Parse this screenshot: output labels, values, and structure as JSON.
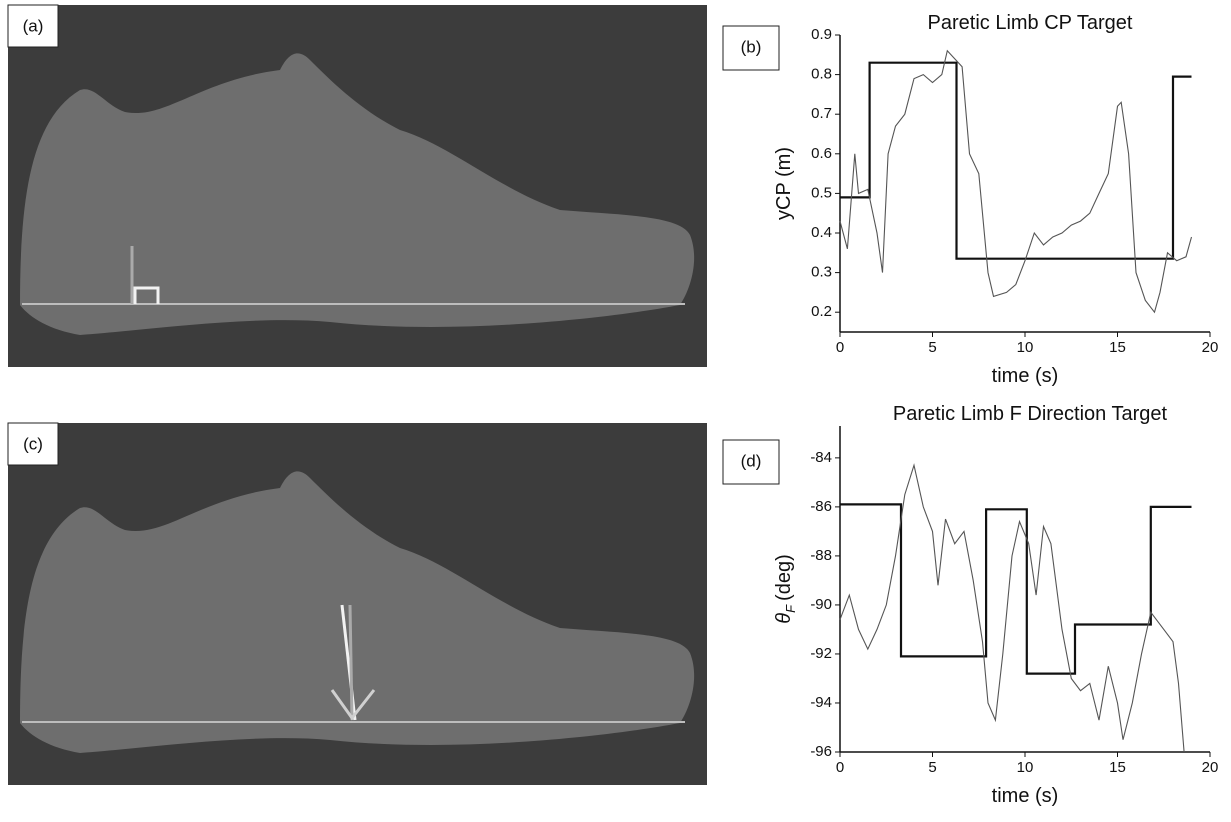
{
  "panel_labels": [
    "(a)",
    "(b)",
    "(c)",
    "(d)"
  ],
  "chart_data": [
    {
      "type": "line",
      "title": "Paretic Limb CP Target",
      "xlabel": "time (s)",
      "ylabel": "yCP (m)",
      "xlim": [
        0,
        20
      ],
      "xticks": [
        0,
        5,
        10,
        15,
        20
      ],
      "ylim": [
        0.15,
        0.9
      ],
      "yticks": [
        0.2,
        0.3,
        0.4,
        0.5,
        0.6,
        0.7,
        0.8,
        0.9
      ],
      "series": [
        {
          "color": "#111111",
          "x": [
            0,
            1.6,
            1.6,
            6.3,
            6.3,
            18.0,
            18.0,
            19.0
          ],
          "values": [
            0.49,
            0.49,
            0.83,
            0.83,
            0.335,
            0.335,
            0.795,
            0.795
          ]
        },
        {
          "color": "#555555",
          "x": [
            0,
            0.4,
            0.8,
            1.0,
            1.5,
            2,
            2.3,
            2.6,
            3,
            3.5,
            4,
            4.5,
            5,
            5.5,
            5.8,
            6.2,
            6.6,
            7,
            7.5,
            8,
            8.3,
            9,
            9.5,
            10,
            10.5,
            11,
            11.5,
            12,
            12.5,
            13,
            13.5,
            14,
            14.5,
            15,
            15.2,
            15.6,
            16,
            16.5,
            17,
            17.3,
            17.7,
            18.2,
            18.7,
            19
          ],
          "values": [
            0.43,
            0.36,
            0.6,
            0.5,
            0.51,
            0.4,
            0.3,
            0.6,
            0.67,
            0.7,
            0.79,
            0.8,
            0.78,
            0.8,
            0.86,
            0.84,
            0.82,
            0.6,
            0.55,
            0.3,
            0.24,
            0.25,
            0.27,
            0.33,
            0.4,
            0.37,
            0.39,
            0.4,
            0.42,
            0.43,
            0.45,
            0.5,
            0.55,
            0.72,
            0.73,
            0.6,
            0.3,
            0.23,
            0.2,
            0.25,
            0.35,
            0.33,
            0.34,
            0.39
          ]
        }
      ]
    },
    {
      "type": "line",
      "title": "Paretic Limb F Direction Target",
      "xlabel": "time (s)",
      "ylabel": {
        "symbol": "θ",
        "subscript": "F",
        "unit": "(deg)"
      },
      "xlim": [
        0,
        20
      ],
      "xticks": [
        0,
        5,
        10,
        15,
        20
      ],
      "ylim": [
        -96,
        -82.7
      ],
      "yticks": [
        -96,
        -94,
        -92,
        -90,
        -88,
        -86,
        -84
      ],
      "series": [
        {
          "color": "#111111",
          "x": [
            0,
            3.3,
            3.3,
            7.9,
            7.9,
            10.1,
            10.1,
            12.7,
            12.7,
            16.8,
            16.8,
            19
          ],
          "values": [
            -85.9,
            -85.9,
            -92.1,
            -92.1,
            -86.1,
            -86.1,
            -92.8,
            -92.8,
            -90.8,
            -90.8,
            -86,
            -86
          ]
        },
        {
          "color": "#555555",
          "x": [
            0,
            0.5,
            1,
            1.5,
            2,
            2.5,
            3,
            3.5,
            4,
            4.5,
            5,
            5.3,
            5.7,
            6.2,
            6.7,
            7.2,
            7.7,
            8,
            8.4,
            8.8,
            9.3,
            9.7,
            10.2,
            10.6,
            11,
            11.4,
            12,
            12.5,
            13,
            13.5,
            14,
            14.5,
            15,
            15.3,
            15.8,
            16.3,
            16.8,
            17.5,
            18,
            18.3,
            18.6
          ],
          "values": [
            -90.6,
            -89.6,
            -91,
            -91.8,
            -91,
            -90,
            -88,
            -85.5,
            -84.3,
            -86,
            -87,
            -89.2,
            -86.5,
            -87.5,
            -87,
            -89,
            -91.5,
            -94,
            -94.7,
            -92,
            -88,
            -86.6,
            -87.5,
            -89.6,
            -86.8,
            -87.5,
            -91,
            -93,
            -93.5,
            -93.2,
            -94.7,
            -92.5,
            -94,
            -95.5,
            -94,
            -92,
            -90.3,
            -91,
            -91.5,
            -93.2,
            -96
          ]
        }
      ]
    }
  ]
}
